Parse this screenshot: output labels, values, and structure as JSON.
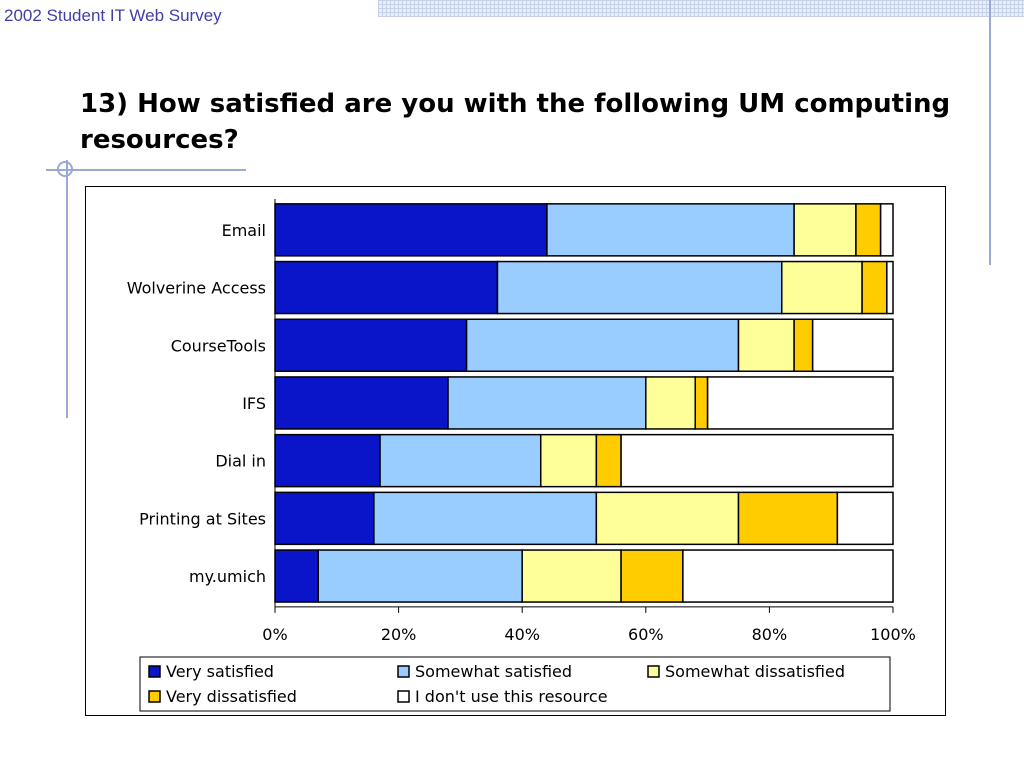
{
  "header": {
    "text": "2002 Student IT Web Survey"
  },
  "slide": {
    "title": "13) How satisfied are you with the following UM computing resources?"
  },
  "colors": {
    "series": [
      "#0a14c8",
      "#99ccff",
      "#ffff99",
      "#ffcc00",
      "#ffffff"
    ],
    "header_text": "#3f3fa8",
    "decoration": "#9aa8d6"
  },
  "chart_data": {
    "type": "bar",
    "orientation": "horizontal",
    "stacked": "percent",
    "categories": [
      "Email",
      "Wolverine Access",
      "CourseTools",
      "IFS",
      "Dial in",
      "Printing at Sites",
      "my.umich"
    ],
    "series": [
      {
        "name": "Very satisfied",
        "values": [
          44,
          36,
          31,
          28,
          17,
          16,
          7
        ]
      },
      {
        "name": "Somewhat satisfied",
        "values": [
          40,
          46,
          44,
          32,
          26,
          36,
          33
        ]
      },
      {
        "name": "Somewhat dissatisfied",
        "values": [
          10,
          13,
          9,
          8,
          9,
          23,
          16
        ]
      },
      {
        "name": "Very dissatisfied",
        "values": [
          4,
          4,
          3,
          2,
          4,
          16,
          10
        ]
      },
      {
        "name": "I don't use this resource",
        "values": [
          2,
          1,
          13,
          30,
          44,
          9,
          34
        ]
      }
    ],
    "xlim": [
      0,
      100
    ],
    "ticks": [
      "0%",
      "20%",
      "40%",
      "60%",
      "80%",
      "100%"
    ],
    "legend_position": "bottom",
    "grid": false
  }
}
